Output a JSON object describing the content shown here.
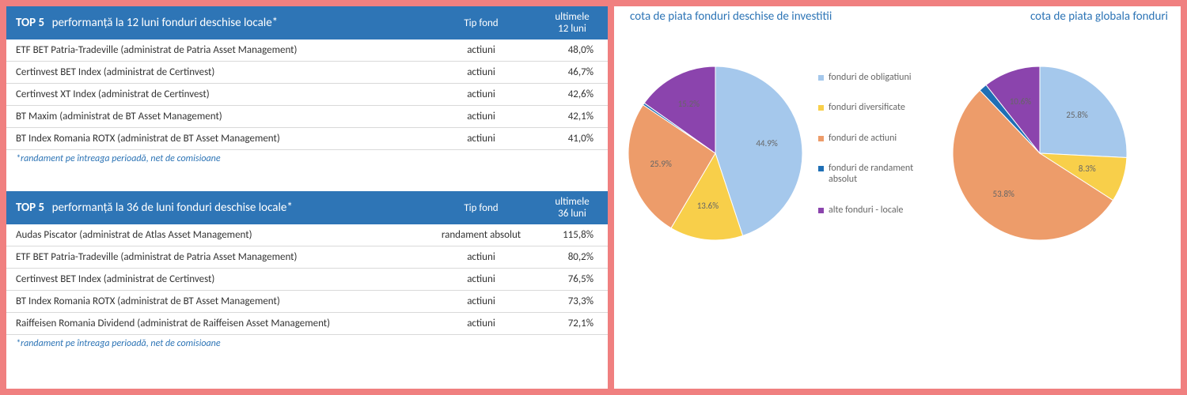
{
  "colors": {
    "header_bg": "#2e75b6",
    "accent_text": "#2e75b6",
    "border": "#d9d9d9",
    "page_bg": "#f08080"
  },
  "table12": {
    "title_prefix": "TOP 5",
    "title_rest": "performanță la 12 luni fonduri deschise locale*",
    "col_type": "Tip fond",
    "col_period_l1": "ultimele",
    "col_period_l2": "12 luni",
    "rows": [
      {
        "name": "ETF BET Patria-Tradeville (administrat de Patria Asset Management)",
        "type": "actiuni",
        "val": "48,0%"
      },
      {
        "name": "Certinvest BET Index (administrat de Certinvest)",
        "type": "actiuni",
        "val": "46,7%"
      },
      {
        "name": "Certinvest XT Index (administrat de Certinvest)",
        "type": "actiuni",
        "val": "42,6%"
      },
      {
        "name": "BT Maxim (administrat de BT Asset Management)",
        "type": "actiuni",
        "val": "42,1%"
      },
      {
        "name": "BT Index Romania ROTX  (administrat de BT Asset Management)",
        "type": "actiuni",
        "val": "41,0%"
      }
    ],
    "footnote": "*randament pe întreaga perioadă, net de comisioane"
  },
  "table36": {
    "title_prefix": "TOP 5",
    "title_rest": "performanță la 36 de luni fonduri deschise locale*",
    "col_type": "Tip fond",
    "col_period_l1": "ultimele",
    "col_period_l2": "36 luni",
    "rows": [
      {
        "name": "Audas Piscator (administrat de Atlas Asset Management)",
        "type": "randament absolut",
        "val": "115,8%"
      },
      {
        "name": "ETF BET Patria-Tradeville (administrat de Patria Asset Management)",
        "type": "actiuni",
        "val": "80,2%"
      },
      {
        "name": "Certinvest BET Index (administrat de Certinvest)",
        "type": "actiuni",
        "val": "76,5%"
      },
      {
        "name": "BT Index Romania ROTX  (administrat de BT Asset Management)",
        "type": "actiuni",
        "val": "73,3%"
      },
      {
        "name": "Raiffeisen Romania Dividend (administrat de Raiffeisen Asset Management)",
        "type": "actiuni",
        "val": "72,1%"
      }
    ],
    "footnote": "*randament pe întreaga perioadă, net de comisioane"
  },
  "charts": {
    "title_left": "cota de piata fonduri deschise de investitii",
    "title_right": "cota de piata globala fonduri",
    "legend": [
      {
        "label": "fonduri de obligatiuni",
        "color": "#a5c8ec"
      },
      {
        "label": "fonduri diversificate",
        "color": "#f8cf4a"
      },
      {
        "label": "fonduri de actiuni",
        "color": "#ed9c6a"
      },
      {
        "label": "fonduri de randament absolut",
        "color": "#1f6fb5"
      },
      {
        "label": "alte fonduri - locale",
        "color": "#8b44ad"
      }
    ],
    "pie1": {
      "type": "pie",
      "radius": 110,
      "slices": [
        {
          "label": "44.9%",
          "value": 44.9,
          "color": "#a5c8ec"
        },
        {
          "label": "13.6%",
          "value": 13.6,
          "color": "#f8cf4a"
        },
        {
          "label": "25.9%",
          "value": 25.9,
          "color": "#ed9c6a"
        },
        {
          "label": "",
          "value": 0.4,
          "color": "#1f6fb5"
        },
        {
          "label": "15.2%",
          "value": 15.2,
          "color": "#8b44ad"
        }
      ]
    },
    "pie2": {
      "type": "pie",
      "radius": 110,
      "slices": [
        {
          "label": "25.8%",
          "value": 25.8,
          "color": "#a5c8ec"
        },
        {
          "label": "8.3%",
          "value": 8.3,
          "color": "#f8cf4a"
        },
        {
          "label": "53.8%",
          "value": 53.8,
          "color": "#ed9c6a"
        },
        {
          "label": "",
          "value": 1.5,
          "color": "#1f6fb5"
        },
        {
          "label": "10.6%",
          "value": 10.6,
          "color": "#8b44ad"
        }
      ]
    }
  }
}
